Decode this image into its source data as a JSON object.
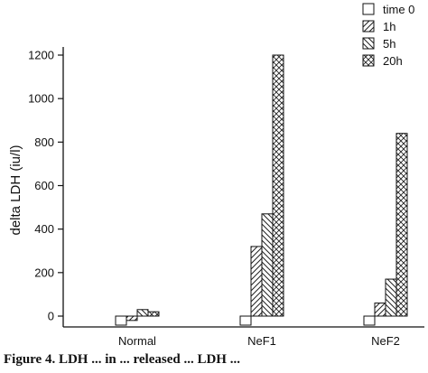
{
  "chart_data": {
    "type": "bar",
    "ylabel": "delta LDH (iu/l)",
    "xlabel": "",
    "ylim": [
      -50,
      1250
    ],
    "yticks": [
      0,
      200,
      400,
      600,
      800,
      1000,
      1200
    ],
    "grid": false,
    "legend_position": "top-right",
    "categories": [
      "Normal",
      "NeF1",
      "NeF2"
    ],
    "series": [
      {
        "name": "time 0",
        "pattern": "empty",
        "values": [
          0,
          0,
          0
        ]
      },
      {
        "name": "1h",
        "pattern": "hatch-forward",
        "values": [
          -20,
          320,
          60
        ]
      },
      {
        "name": "5h",
        "pattern": "hatch-back",
        "values": [
          30,
          470,
          170
        ]
      },
      {
        "name": "20h",
        "pattern": "cross-hatch",
        "values": [
          20,
          1200,
          840
        ]
      }
    ]
  },
  "caption": "Figure 4. LDH ... in ... released ... LDH ..."
}
